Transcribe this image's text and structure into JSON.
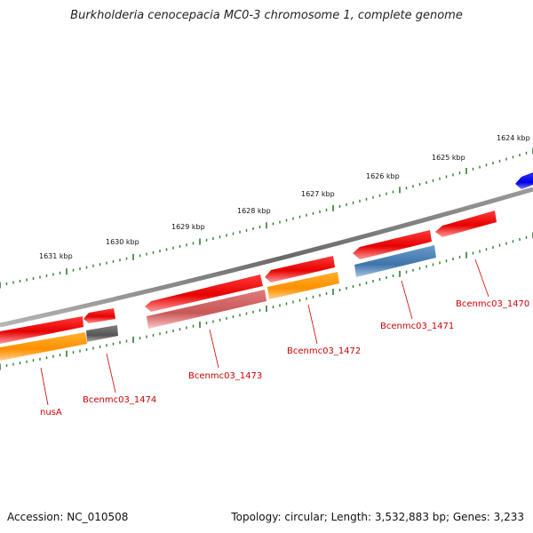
{
  "title": "Burkholderia cenocepacia MC0-3 chromosome 1, complete genome",
  "footer": {
    "accession": "Accession: NC_010508",
    "summary": "Topology: circular; Length: 3,532,883 bp; Genes: 3,233"
  },
  "scale_labels": [
    "1624 kbp",
    "1625 kbp",
    "1626 kbp",
    "1627 kbp",
    "1628 kbp",
    "1629 kbp",
    "1630 kbp",
    "1631 kbp"
  ],
  "gene_labels": [
    "nusA",
    "Bcenmc03_1474",
    "Bcenmc03_1473",
    "Bcenmc03_1472",
    "Bcenmc03_1471",
    "Bcenmc03_1470"
  ],
  "colors": {
    "cds": "#ee0000",
    "cds_light": "#ff8080",
    "orange": "#ff9900",
    "gray": "#555555",
    "steelblue": "#4a7fb5",
    "pink": "#f4a0a0",
    "blue": "#0000ee",
    "backbone": "#777777",
    "tick": "#2e7d2e",
    "label": "#cc0000"
  }
}
